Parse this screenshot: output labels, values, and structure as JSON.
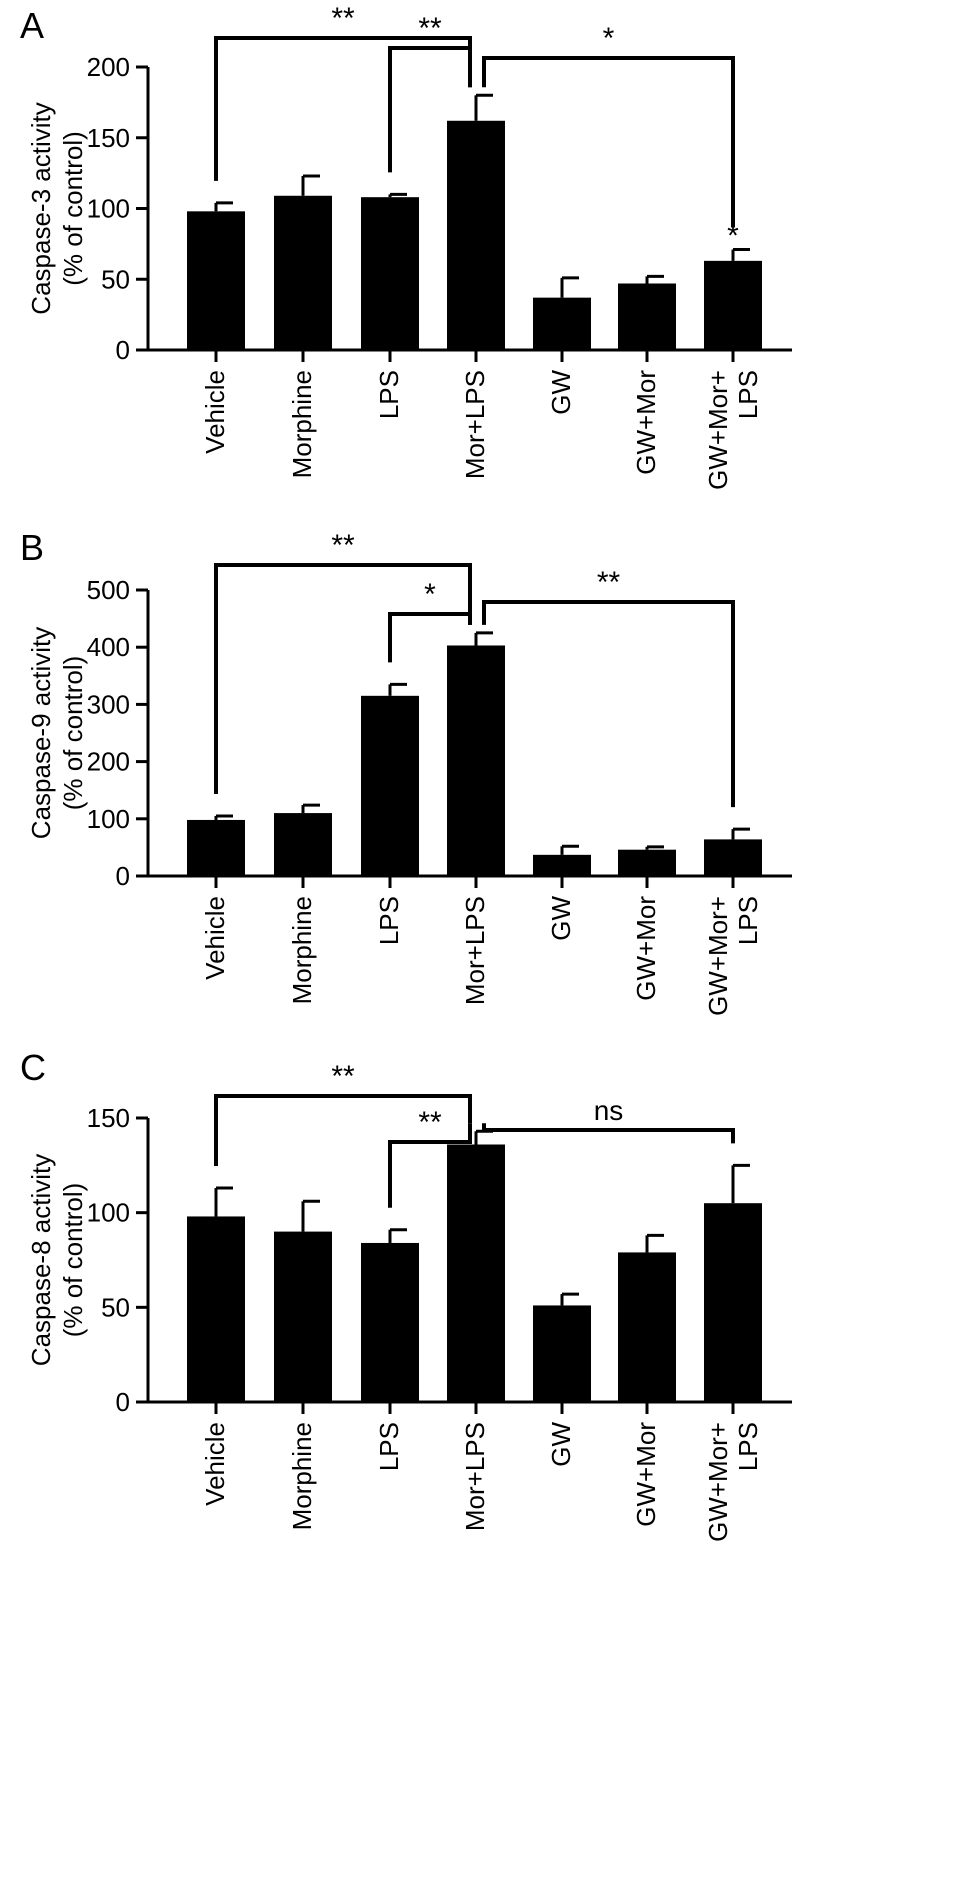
{
  "chart_data": [
    {
      "panel": "A",
      "type": "bar",
      "ylabel": "Caspase-3 activity",
      "ylabel2": "(% of control)",
      "ylim": [
        0,
        200
      ],
      "yticks": [
        0,
        50,
        100,
        150,
        200
      ],
      "categories": [
        "Vehicle",
        "Morphine",
        "LPS",
        "Mor+LPS",
        "GW",
        "GW+Mor",
        "GW+Mor+\nLPS"
      ],
      "values": [
        98,
        109,
        108,
        162,
        37,
        47,
        63
      ],
      "errors": [
        6,
        14,
        2,
        18,
        14,
        5,
        8
      ],
      "bar_markers": [
        {
          "category": 6,
          "text": "*"
        }
      ],
      "comparisons": [
        {
          "from": 0,
          "to": 3,
          "label": "**"
        },
        {
          "from": 2,
          "to": 3,
          "label": "**"
        },
        {
          "from": 3,
          "to": 6,
          "label": "*"
        }
      ]
    },
    {
      "panel": "B",
      "type": "bar",
      "ylabel": "Caspase-9 activity",
      "ylabel2": "(% of control)",
      "ylim": [
        0,
        500
      ],
      "yticks": [
        0,
        100,
        200,
        300,
        400,
        500
      ],
      "categories": [
        "Vehicle",
        "Morphine",
        "LPS",
        "Mor+LPS",
        "GW",
        "GW+Mor",
        "GW+Mor+\nLPS"
      ],
      "values": [
        98,
        110,
        315,
        403,
        37,
        46,
        64
      ],
      "errors": [
        7,
        14,
        20,
        22,
        15,
        5,
        18
      ],
      "bar_markers": [],
      "comparisons": [
        {
          "from": 0,
          "to": 3,
          "label": "**"
        },
        {
          "from": 2,
          "to": 3,
          "label": "*"
        },
        {
          "from": 3,
          "to": 6,
          "label": "**"
        }
      ]
    },
    {
      "panel": "C",
      "type": "bar",
      "ylabel": "Caspase-8 activity",
      "ylabel2": "(% of control)",
      "ylim": [
        0,
        150
      ],
      "yticks": [
        0,
        50,
        100,
        150
      ],
      "categories": [
        "Vehicle",
        "Morphine",
        "LPS",
        "Mor+LPS",
        "GW",
        "GW+Mor",
        "GW+Mor+\nLPS"
      ],
      "values": [
        98,
        90,
        84,
        136,
        51,
        79,
        105
      ],
      "errors": [
        15,
        16,
        7,
        7,
        6,
        9,
        20
      ],
      "bar_markers": [],
      "comparisons": [
        {
          "from": 0,
          "to": 3,
          "label": "**"
        },
        {
          "from": 2,
          "to": 3,
          "label": "**"
        },
        {
          "from": 3,
          "to": 6,
          "label": "ns"
        }
      ]
    }
  ]
}
